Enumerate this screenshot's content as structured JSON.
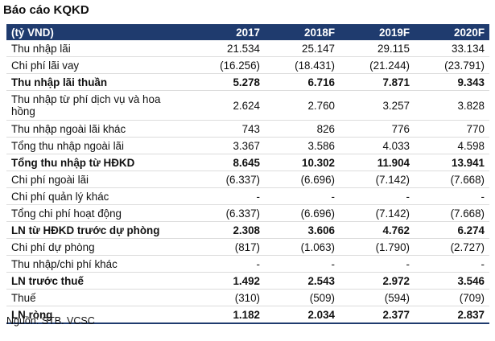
{
  "title": "Báo cáo KQKD",
  "table": {
    "headers": [
      "(tỷ VND)",
      "2017",
      "2018F",
      "2019F",
      "2020F"
    ],
    "rows": [
      {
        "label": "Thu nhập lãi",
        "values": [
          "21.534",
          "25.147",
          "29.115",
          "33.134"
        ],
        "bold": false
      },
      {
        "label": "Chi phí lãi vay",
        "values": [
          "(16.256)",
          "(18.431)",
          "(21.244)",
          "(23.791)"
        ],
        "bold": false
      },
      {
        "label": "Thu nhập lãi thuần",
        "values": [
          "5.278",
          "6.716",
          "7.871",
          "9.343"
        ],
        "bold": true
      },
      {
        "label": "Thu nhập từ phí dịch vụ và hoa hồng",
        "values": [
          "2.624",
          "2.760",
          "3.257",
          "3.828"
        ],
        "bold": false
      },
      {
        "label": "Thu nhập ngoài lãi khác",
        "values": [
          "743",
          "826",
          "776",
          "770"
        ],
        "bold": false
      },
      {
        "label": "Tổng thu nhập ngoài lãi",
        "values": [
          "3.367",
          "3.586",
          "4.033",
          "4.598"
        ],
        "bold": false
      },
      {
        "label": "Tổng thu nhập từ HĐKD",
        "values": [
          "8.645",
          "10.302",
          "11.904",
          "13.941"
        ],
        "bold": true
      },
      {
        "label": "Chi phí ngoài lãi",
        "values": [
          "(6.337)",
          "(6.696)",
          "(7.142)",
          "(7.668)"
        ],
        "bold": false
      },
      {
        "label": "Chi phí quản lý khác",
        "values": [
          "-",
          "-",
          "-",
          "-"
        ],
        "bold": false
      },
      {
        "label": "Tổng chi phí hoạt động",
        "values": [
          "(6.337)",
          "(6.696)",
          "(7.142)",
          "(7.668)"
        ],
        "bold": false
      },
      {
        "label": "LN từ HĐKD trước dự phòng",
        "values": [
          "2.308",
          "3.606",
          "4.762",
          "6.274"
        ],
        "bold": true
      },
      {
        "label": "Chi phí dự phòng",
        "values": [
          "(817)",
          "(1.063)",
          "(1.790)",
          "(2.727)"
        ],
        "bold": false
      },
      {
        "label": "Thu nhập/chi phí khác",
        "values": [
          "-",
          "-",
          "-",
          "-"
        ],
        "bold": false
      },
      {
        "label": "LN trước thuế",
        "values": [
          "1.492",
          "2.543",
          "2.972",
          "3.546"
        ],
        "bold": true
      },
      {
        "label": "Thuế",
        "values": [
          "(310)",
          "(509)",
          "(594)",
          "(709)"
        ],
        "bold": false
      },
      {
        "label": "LN ròng",
        "values": [
          "1.182",
          "2.034",
          "2.377",
          "2.837"
        ],
        "bold": true
      }
    ]
  },
  "source": "Nguồn: STB. VCSC",
  "colors": {
    "header_bg": "#1f3b6e",
    "header_text": "#ffffff",
    "rule": "#dcdcdc"
  }
}
